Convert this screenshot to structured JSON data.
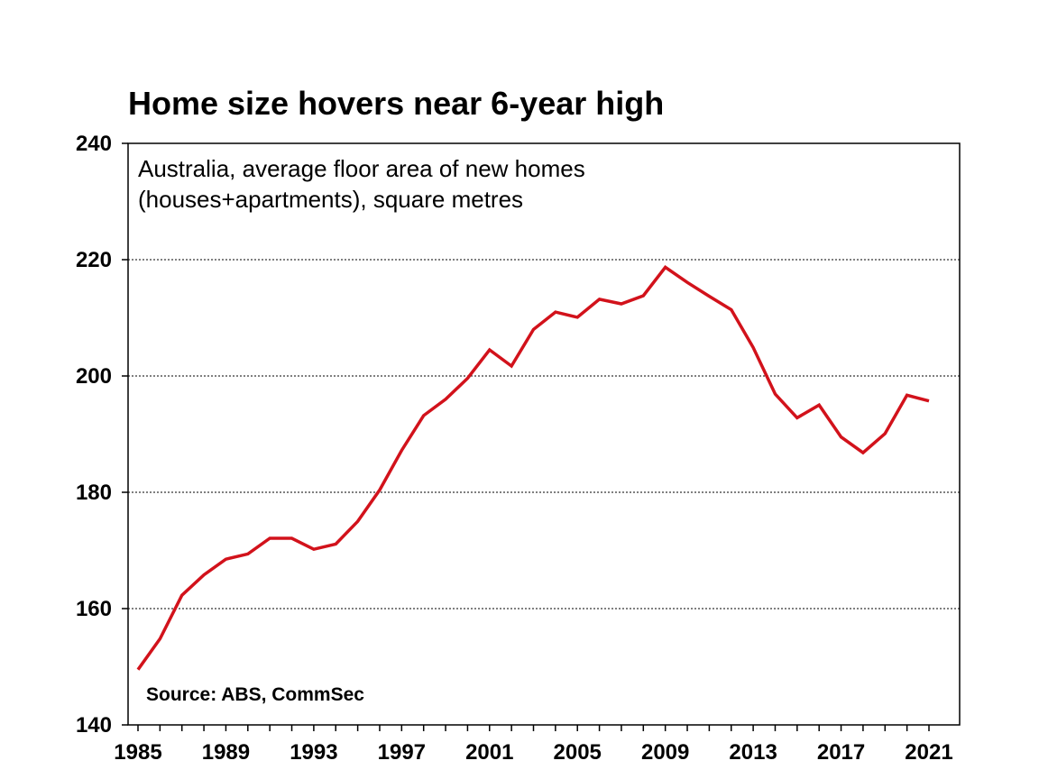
{
  "chart_data": {
    "type": "line",
    "title": "Home size hovers near 6-year high",
    "subtitle_lines": [
      "Australia, average floor area of new homes",
      "(houses+apartments), square metres"
    ],
    "source": "Source: ABS, CommSec",
    "xlabel": "",
    "ylabel": "",
    "xlim": [
      1985,
      2021
    ],
    "ylim": [
      140,
      240
    ],
    "y_ticks": [
      "140",
      "160",
      "180",
      "200",
      "220",
      "240"
    ],
    "x_ticks": [
      "1985",
      "1989",
      "1993",
      "1997",
      "2001",
      "2005",
      "2009",
      "2013",
      "2017",
      "2021"
    ],
    "grid": "horizontal dotted",
    "series_color": "#d2121b",
    "x": [
      1985,
      1986,
      1987,
      1988,
      1989,
      1990,
      1991,
      1992,
      1993,
      1994,
      1995,
      1996,
      1997,
      1998,
      1999,
      2000,
      2001,
      2002,
      2003,
      2004,
      2005,
      2006,
      2007,
      2008,
      2009,
      2010,
      2011,
      2012,
      2013,
      2014,
      2015,
      2016,
      2017,
      2018,
      2019,
      2020,
      2021
    ],
    "series": [
      {
        "values": [
          149.5,
          154.8,
          162.3,
          165.8,
          168.5,
          169.4,
          172.1,
          172.1,
          170.2,
          171.1,
          175.0,
          180.4,
          187.2,
          193.2,
          196.0,
          199.6,
          204.5,
          201.7,
          208.0,
          211.0,
          210.1,
          213.2,
          212.4,
          213.8,
          218.7,
          216.1,
          213.7,
          211.4,
          204.9,
          196.9,
          192.8,
          195.0,
          189.5,
          186.8,
          190.1,
          196.7,
          195.7
        ]
      }
    ]
  }
}
